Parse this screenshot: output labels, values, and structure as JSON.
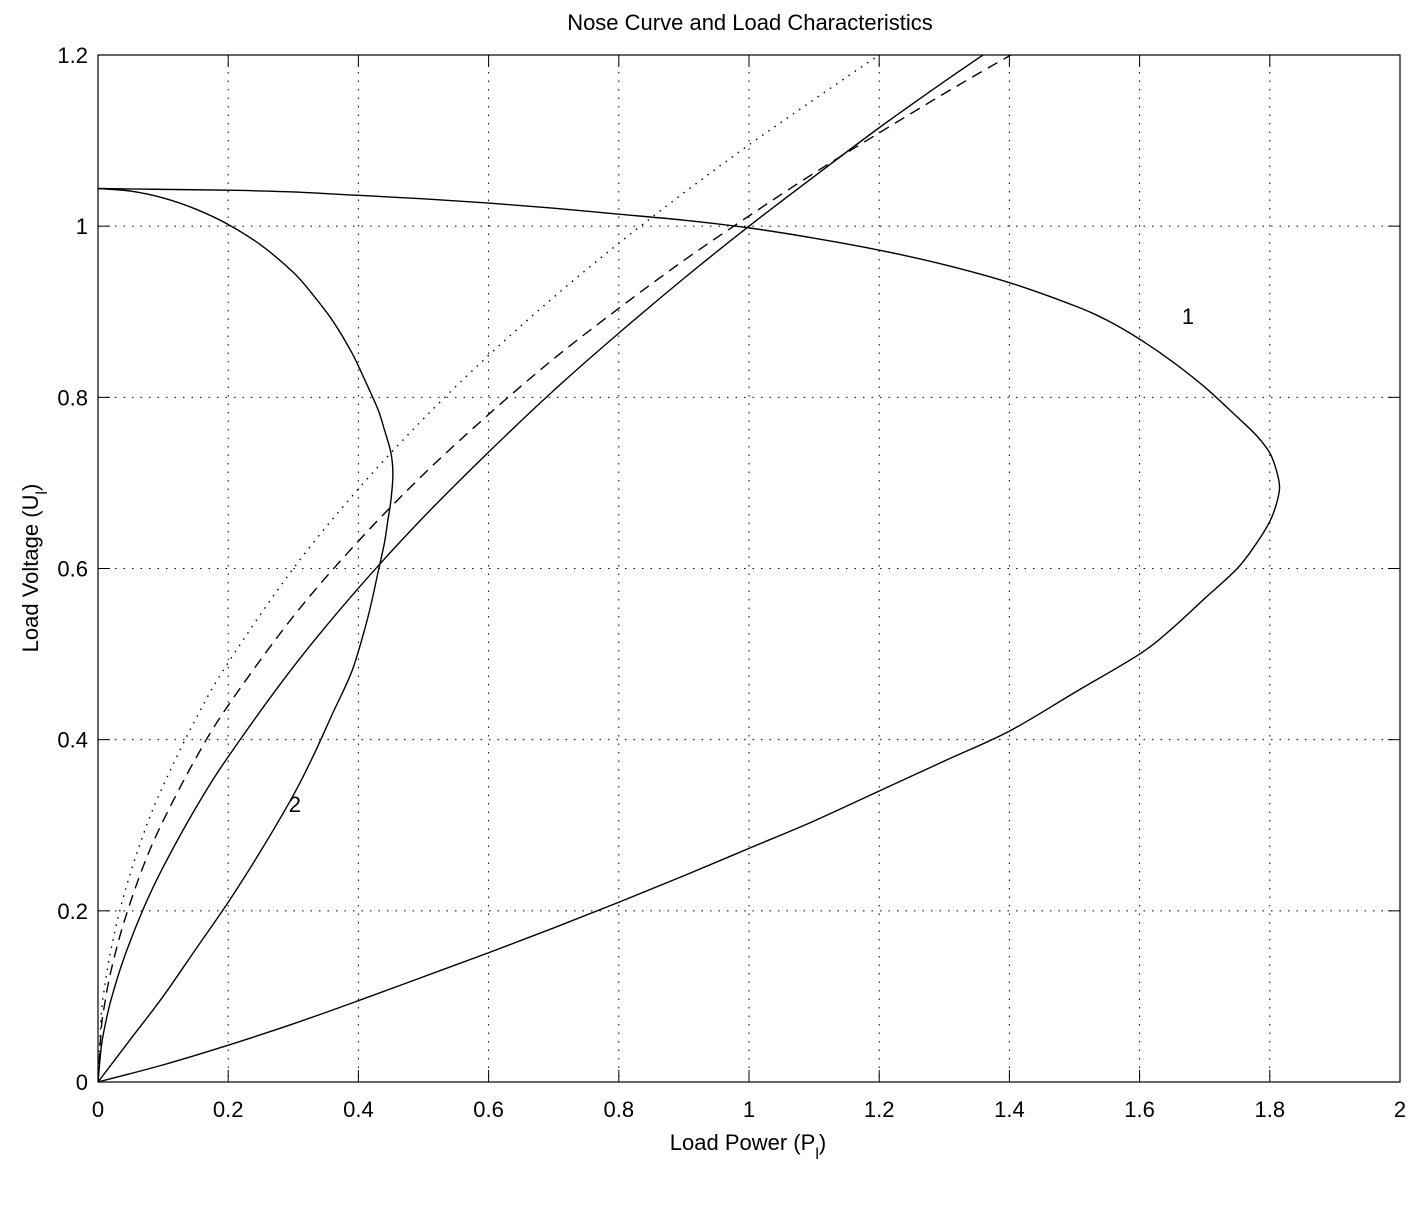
{
  "chart_data": {
    "type": "line",
    "title": "Nose Curve and Load Characteristics",
    "xlabel": {
      "main": "Load Power (P",
      "sub": "l",
      "close": ")"
    },
    "ylabel": {
      "main": "Load Voltage (U",
      "sub": "l",
      "close": ")"
    },
    "xlim": [
      0,
      2
    ],
    "ylim": [
      0,
      1.2
    ],
    "xticks": [
      0,
      0.2,
      0.4,
      0.6,
      0.8,
      1,
      1.2,
      1.4,
      1.6,
      1.8,
      2
    ],
    "xtick_labels": [
      "0",
      "0.2",
      "0.4",
      "0.6",
      "0.8",
      "1",
      "1.2",
      "1.4",
      "1.6",
      "1.8",
      "2"
    ],
    "yticks": [
      0,
      0.2,
      0.4,
      0.6,
      0.8,
      1,
      1.2
    ],
    "ytick_labels": [
      "0",
      "0.2",
      "0.4",
      "0.6",
      "0.8",
      "1",
      "1.2"
    ],
    "grid": true,
    "grid_style": "dotted",
    "line_color": "#000000",
    "series": [
      {
        "style": "solid",
        "x": [
          0,
          0.1,
          0.2,
          0.3,
          0.4,
          0.5,
          0.6,
          0.7,
          0.8,
          0.9,
          1.0,
          1.1,
          1.2,
          1.3,
          1.4,
          1.5,
          1.55,
          1.6,
          1.65,
          1.7,
          1.75,
          1.78,
          1.8,
          1.81,
          1.815,
          1.81,
          1.8,
          1.78,
          1.75,
          1.7,
          1.65,
          1.6,
          1.5,
          1.4,
          1.3,
          1.2,
          1.1,
          1.0,
          0.9,
          0.8,
          0.7,
          0.6,
          0.5,
          0.4,
          0.3,
          0.2,
          0.1,
          0
        ],
        "y": [
          1.044,
          1.043,
          1.042,
          1.04,
          1.036,
          1.032,
          1.027,
          1.021,
          1.014,
          1.007,
          0.998,
          0.986,
          0.972,
          0.955,
          0.934,
          0.907,
          0.89,
          0.868,
          0.842,
          0.812,
          0.777,
          0.755,
          0.735,
          0.715,
          0.695,
          0.675,
          0.655,
          0.63,
          0.6,
          0.565,
          0.53,
          0.5,
          0.455,
          0.41,
          0.375,
          0.34,
          0.305,
          0.273,
          0.241,
          0.21,
          0.18,
          0.151,
          0.123,
          0.095,
          0.068,
          0.043,
          0.02,
          0
        ]
      },
      {
        "style": "solid",
        "x": [
          0,
          0.05,
          0.1,
          0.15,
          0.2,
          0.25,
          0.3,
          0.33,
          0.36,
          0.39,
          0.41,
          0.43,
          0.44,
          0.45,
          0.453,
          0.45,
          0.445,
          0.44,
          0.43,
          0.42,
          0.41,
          0.39,
          0.36,
          0.33,
          0.3,
          0.25,
          0.2,
          0.15,
          0.1,
          0.05,
          0
        ],
        "y": [
          1.044,
          1.041,
          1.033,
          1.02,
          1.002,
          0.978,
          0.946,
          0.92,
          0.89,
          0.852,
          0.82,
          0.786,
          0.762,
          0.735,
          0.71,
          0.68,
          0.655,
          0.63,
          0.595,
          0.56,
          0.53,
          0.48,
          0.43,
          0.38,
          0.335,
          0.27,
          0.21,
          0.155,
          0.1,
          0.05,
          0
        ]
      },
      {
        "style": "dotted",
        "x": [
          0,
          0.005,
          0.01,
          0.02,
          0.04,
          0.07,
          0.1,
          0.15,
          0.2,
          0.3,
          0.4,
          0.5,
          0.6,
          0.7,
          0.8,
          0.9,
          1.0,
          1.1,
          1.2,
          1.3
        ],
        "y": [
          0,
          0.078,
          0.11,
          0.155,
          0.219,
          0.29,
          0.346,
          0.424,
          0.49,
          0.6,
          0.693,
          0.775,
          0.849,
          0.917,
          0.98,
          1.039,
          1.095,
          1.148,
          1.2,
          1.249
        ]
      },
      {
        "style": "solid",
        "x": [
          0,
          0.005,
          0.01,
          0.02,
          0.04,
          0.07,
          0.1,
          0.15,
          0.2,
          0.3,
          0.4,
          0.5,
          0.6,
          0.7,
          0.8,
          0.9,
          1.0,
          1.1,
          1.2,
          1.3,
          1.4,
          1.445
        ],
        "y": [
          0,
          0.041,
          0.063,
          0.096,
          0.145,
          0.203,
          0.251,
          0.32,
          0.38,
          0.485,
          0.577,
          0.66,
          0.736,
          0.808,
          0.875,
          0.939,
          1.0,
          1.058,
          1.115,
          1.169,
          1.221,
          1.245
        ]
      },
      {
        "style": "dashed",
        "x": [
          0,
          0.005,
          0.01,
          0.02,
          0.04,
          0.07,
          0.1,
          0.15,
          0.2,
          0.3,
          0.4,
          0.5,
          0.6,
          0.7,
          0.8,
          0.9,
          1.0,
          1.1,
          1.2,
          1.3,
          1.4,
          1.5,
          1.6
        ],
        "y": [
          0,
          0.062,
          0.09,
          0.13,
          0.187,
          0.253,
          0.305,
          0.378,
          0.44,
          0.544,
          0.632,
          0.71,
          0.78,
          0.845,
          0.904,
          0.96,
          1.012,
          1.062,
          1.109,
          1.155,
          1.199,
          1.241,
          1.282
        ]
      }
    ],
    "annotations": [
      {
        "text": "1",
        "x": 1.665,
        "y": 0.895
      },
      {
        "text": "2",
        "x": 0.293,
        "y": 0.325
      }
    ]
  }
}
